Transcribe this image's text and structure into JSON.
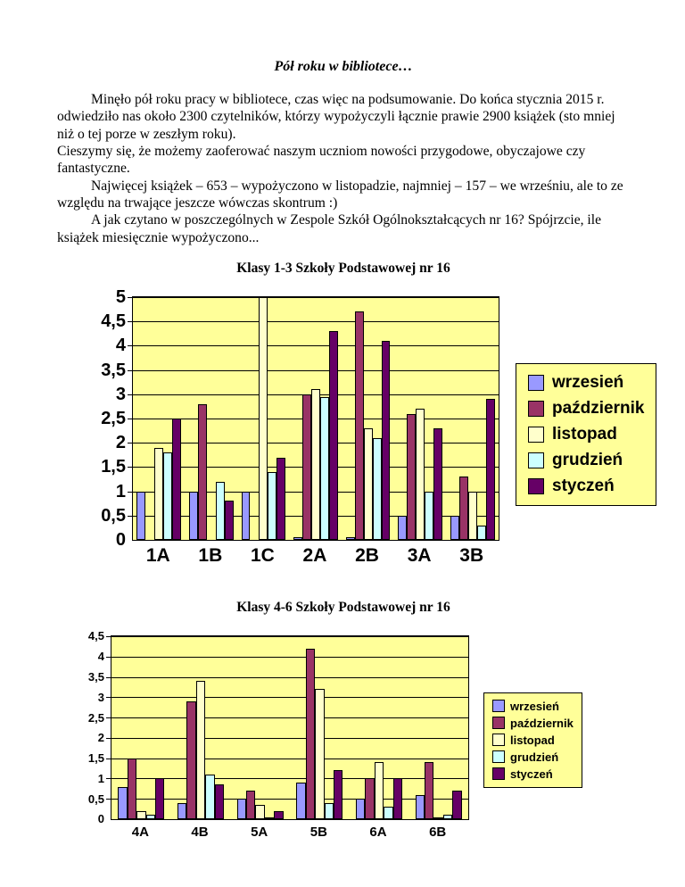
{
  "page": {
    "title": "Pół roku w bibliotece…",
    "paragraphs": [
      {
        "indent": true,
        "text": "Minęło pół roku pracy w bibliotece, czas więc na podsumowanie. Do końca stycznia 2015 r. odwiedziło nas około 2300 czytelników, którzy wypożyczyli łącznie prawie 2900 książek (sto mniej niż o tej porze w zeszłym roku)."
      },
      {
        "indent": false,
        "text": "Cieszymy się, że możemy zaoferować naszym uczniom nowości przygodowe, obyczajowe czy fantastyczne."
      },
      {
        "indent": true,
        "text": "Najwięcej książek – 653 – wypożyczono w listopadzie, najmniej – 157 – we wrześniu, ale to ze względu na trwające jeszcze wówczas skontrum :)"
      },
      {
        "indent": true,
        "text": "A jak czytano w poszczególnych  w Zespole Szkół Ogólnokształcących nr 16? Spójrzcie, ile książek miesięcznie wypożyczono..."
      }
    ]
  },
  "colors": {
    "plot_background": "#FFFF99",
    "legend_background": "#FFFF99",
    "axis": "#000000"
  },
  "chart_data": [
    {
      "type": "bar",
      "title": "Klasy 1-3 Szkoły Podstawowej nr 16",
      "categories": [
        "1A",
        "1B",
        "1C",
        "2A",
        "2B",
        "3A",
        "3B"
      ],
      "series": [
        {
          "name": "wrzesień",
          "color": "#9999FF",
          "values": [
            1,
            1,
            1,
            0.05,
            0.05,
            0.5,
            0.5
          ]
        },
        {
          "name": "październik",
          "color": "#993366",
          "values": [
            0,
            2.8,
            0,
            3,
            4.7,
            2.6,
            1.3
          ]
        },
        {
          "name": "listopad",
          "color": "#FFFFCC",
          "values": [
            1.9,
            0,
            5,
            3.1,
            2.3,
            2.7,
            1
          ]
        },
        {
          "name": "grudzień",
          "color": "#CCFFFF",
          "values": [
            1.8,
            1.2,
            1.4,
            2.95,
            2.1,
            1,
            0.3
          ]
        },
        {
          "name": "styczeń",
          "color": "#660066",
          "values": [
            2.5,
            0.8,
            1.7,
            4.3,
            4.1,
            2.3,
            2.9
          ]
        }
      ],
      "xlabel": "",
      "ylabel": "",
      "ylim": [
        0,
        5
      ],
      "ytick_step": 0.5,
      "ytick_labels": [
        "0",
        "0,5",
        "1",
        "1,5",
        "2",
        "2,5",
        "3",
        "3,5",
        "4",
        "4,5",
        "5"
      ],
      "grid": true,
      "legend_position": "right"
    },
    {
      "type": "bar",
      "title": "Klasy 4-6 Szkoły Podstawowej nr 16",
      "categories": [
        "4A",
        "4B",
        "5A",
        "5B",
        "6A",
        "6B"
      ],
      "series": [
        {
          "name": "wrzesień",
          "color": "#9999FF",
          "values": [
            0.8,
            0.4,
            0.5,
            0.9,
            0.5,
            0.6
          ]
        },
        {
          "name": "październik",
          "color": "#993366",
          "values": [
            1.5,
            2.9,
            0.7,
            4.2,
            1,
            1.4
          ]
        },
        {
          "name": "listopad",
          "color": "#FFFFCC",
          "values": [
            0.2,
            3.4,
            0.35,
            3.2,
            1.4,
            0.05
          ]
        },
        {
          "name": "grudzień",
          "color": "#CCFFFF",
          "values": [
            0.1,
            1.1,
            0.05,
            0.4,
            0.3,
            0.1
          ]
        },
        {
          "name": "styczeń",
          "color": "#660066",
          "values": [
            1,
            0.85,
            0.2,
            1.2,
            1,
            0.7
          ]
        }
      ],
      "xlabel": "",
      "ylabel": "",
      "ylim": [
        0,
        4.5
      ],
      "ytick_step": 0.5,
      "ytick_labels": [
        "0",
        "0,5",
        "1",
        "1,5",
        "2",
        "2,5",
        "3",
        "3,5",
        "4",
        "4,5"
      ],
      "grid": true,
      "legend_position": "right"
    }
  ]
}
